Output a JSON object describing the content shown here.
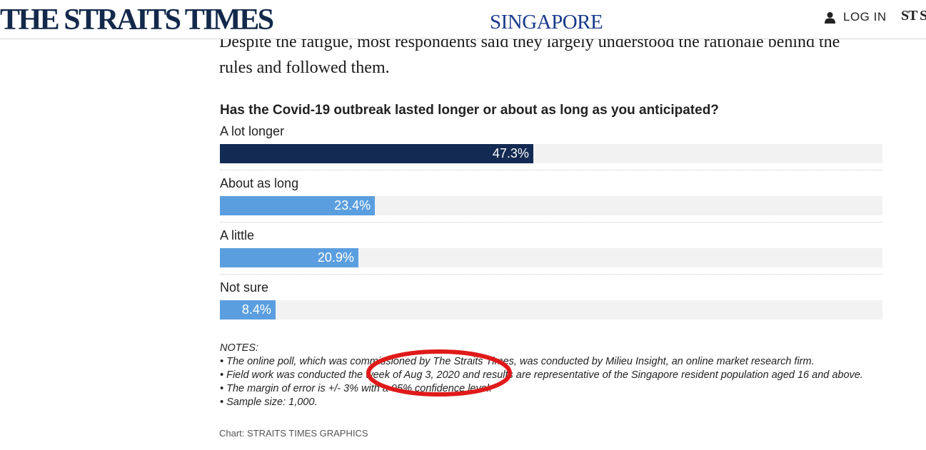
{
  "header": {
    "masthead": "THE STRAITS TIMES",
    "section": "SINGAPORE",
    "login_label": "LOG IN",
    "user_icon": "user-icon",
    "st_logo": "ST S"
  },
  "article": {
    "paragraph": "Despite the fatigue, most respondents said they largely understood the rationale behind the rules and followed them."
  },
  "chart_data": {
    "type": "bar",
    "title": "Has the Covid-19 outbreak lasted longer or about as long as you anticipated?",
    "categories": [
      "A lot longer",
      "About as long",
      "A little",
      "Not sure"
    ],
    "values": [
      47.3,
      23.4,
      20.9,
      8.4
    ],
    "value_labels": [
      "47.3%",
      "23.4%",
      "20.9%",
      "8.4%"
    ],
    "unit": "%",
    "xlim": [
      0,
      100
    ],
    "orientation": "horizontal",
    "colors": [
      "#132a52",
      "#5b9ee0",
      "#5b9ee0",
      "#5b9ee0"
    ],
    "track_color": "#f2f2f2",
    "grid": false,
    "legend": "none"
  },
  "notes": {
    "heading": "NOTES:",
    "lines": [
      "• The online poll, which was commissioned by The Straits Times, was conducted by Milieu Insight, an online market research firm.",
      "• Field work was conducted the week of Aug 3, 2020 and results are representative of the Singapore resident population aged 16 and above.",
      "• The margin of error is +/- 3% with a 95% confidence level.",
      "• Sample size: 1,000."
    ],
    "credit": "Chart: STRAITS TIMES GRAPHICS"
  },
  "annotation": {
    "color": "#e01a1a"
  }
}
